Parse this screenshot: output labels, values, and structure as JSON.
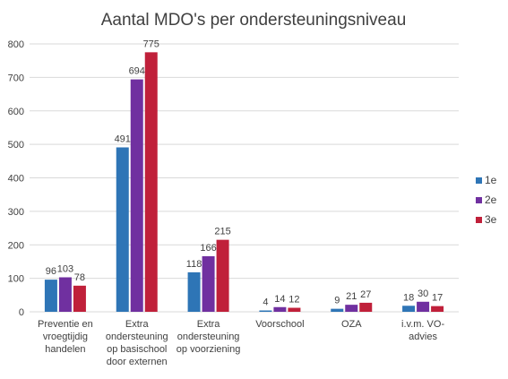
{
  "chart_data": {
    "type": "bar",
    "title": "Aantal MDO's per ondersteuningsniveau",
    "categories": [
      [
        "Preventie en",
        "vroegtijdig",
        "handelen"
      ],
      [
        "Extra",
        "ondersteuning",
        "op basischool",
        "door externen"
      ],
      [
        "Extra",
        "ondersteuning",
        "op voorziening"
      ],
      [
        "Voorschool"
      ],
      [
        "OZA"
      ],
      [
        "i.v.m. VO-",
        "advies"
      ]
    ],
    "series": [
      {
        "name": "1e",
        "color": "#2E75B6",
        "values": [
          96,
          491,
          118,
          4,
          9,
          18
        ]
      },
      {
        "name": "2e",
        "color": "#7030A0",
        "values": [
          103,
          694,
          166,
          14,
          21,
          30
        ]
      },
      {
        "name": "3e",
        "color": "#C0203A",
        "values": [
          78,
          775,
          215,
          12,
          27,
          17
        ]
      }
    ],
    "ylim": [
      0,
      800
    ],
    "yticks": [
      0,
      100,
      200,
      300,
      400,
      500,
      600,
      700,
      800
    ],
    "grid": true,
    "legend_position": "right",
    "data_labels": true
  }
}
